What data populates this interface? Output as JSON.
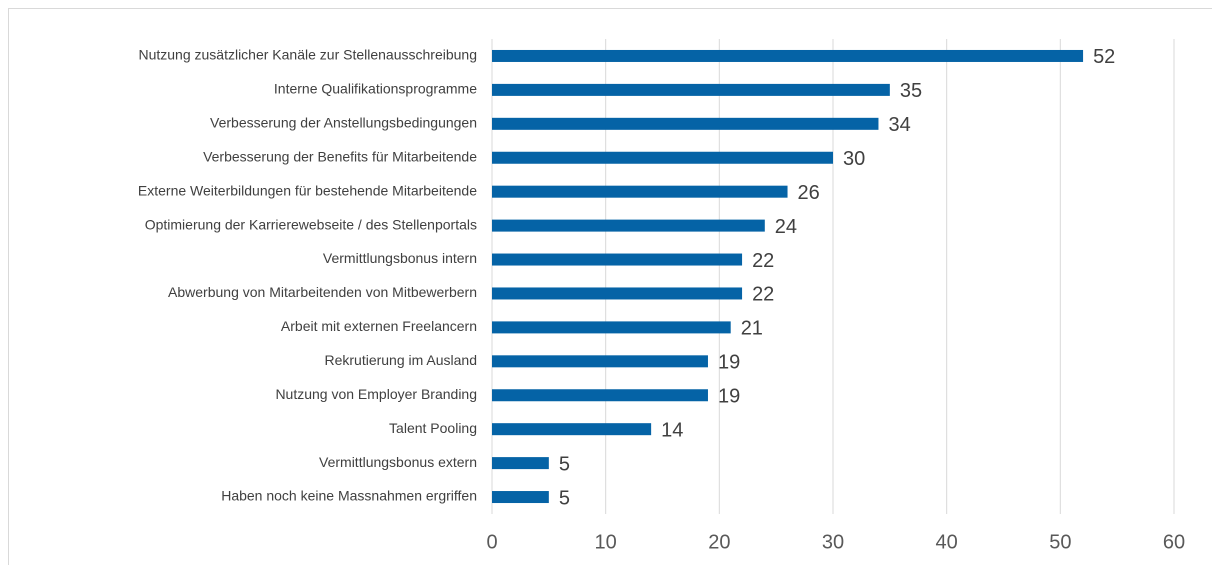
{
  "chart_data": {
    "type": "bar",
    "orientation": "horizontal",
    "categories": [
      "Nutzung zusätzlicher Kanäle zur Stellenausschreibung",
      "Interne Qualifikationsprogramme",
      "Verbesserung der Anstellungsbedingungen",
      "Verbesserung der Benefits für Mitarbeitende",
      "Externe Weiterbildungen für bestehende Mitarbeitende",
      "Optimierung der Karrierewebseite / des Stellenportals",
      "Vermittlungsbonus intern",
      "Abwerbung von Mitarbeitenden von Mitbewerbern",
      "Arbeit mit externen Freelancern",
      "Rekrutierung im Ausland",
      "Nutzung von Employer Branding",
      "Talent Pooling",
      "Vermittlungsbonus extern",
      "Haben noch keine Massnahmen ergriffen"
    ],
    "values": [
      52,
      35,
      34,
      30,
      26,
      24,
      22,
      22,
      21,
      19,
      19,
      14,
      5,
      5
    ],
    "color": "#0563a6",
    "xlim": [
      0,
      60
    ],
    "xticks": [
      0,
      10,
      20,
      30,
      40,
      50,
      60
    ],
    "grid": true
  }
}
